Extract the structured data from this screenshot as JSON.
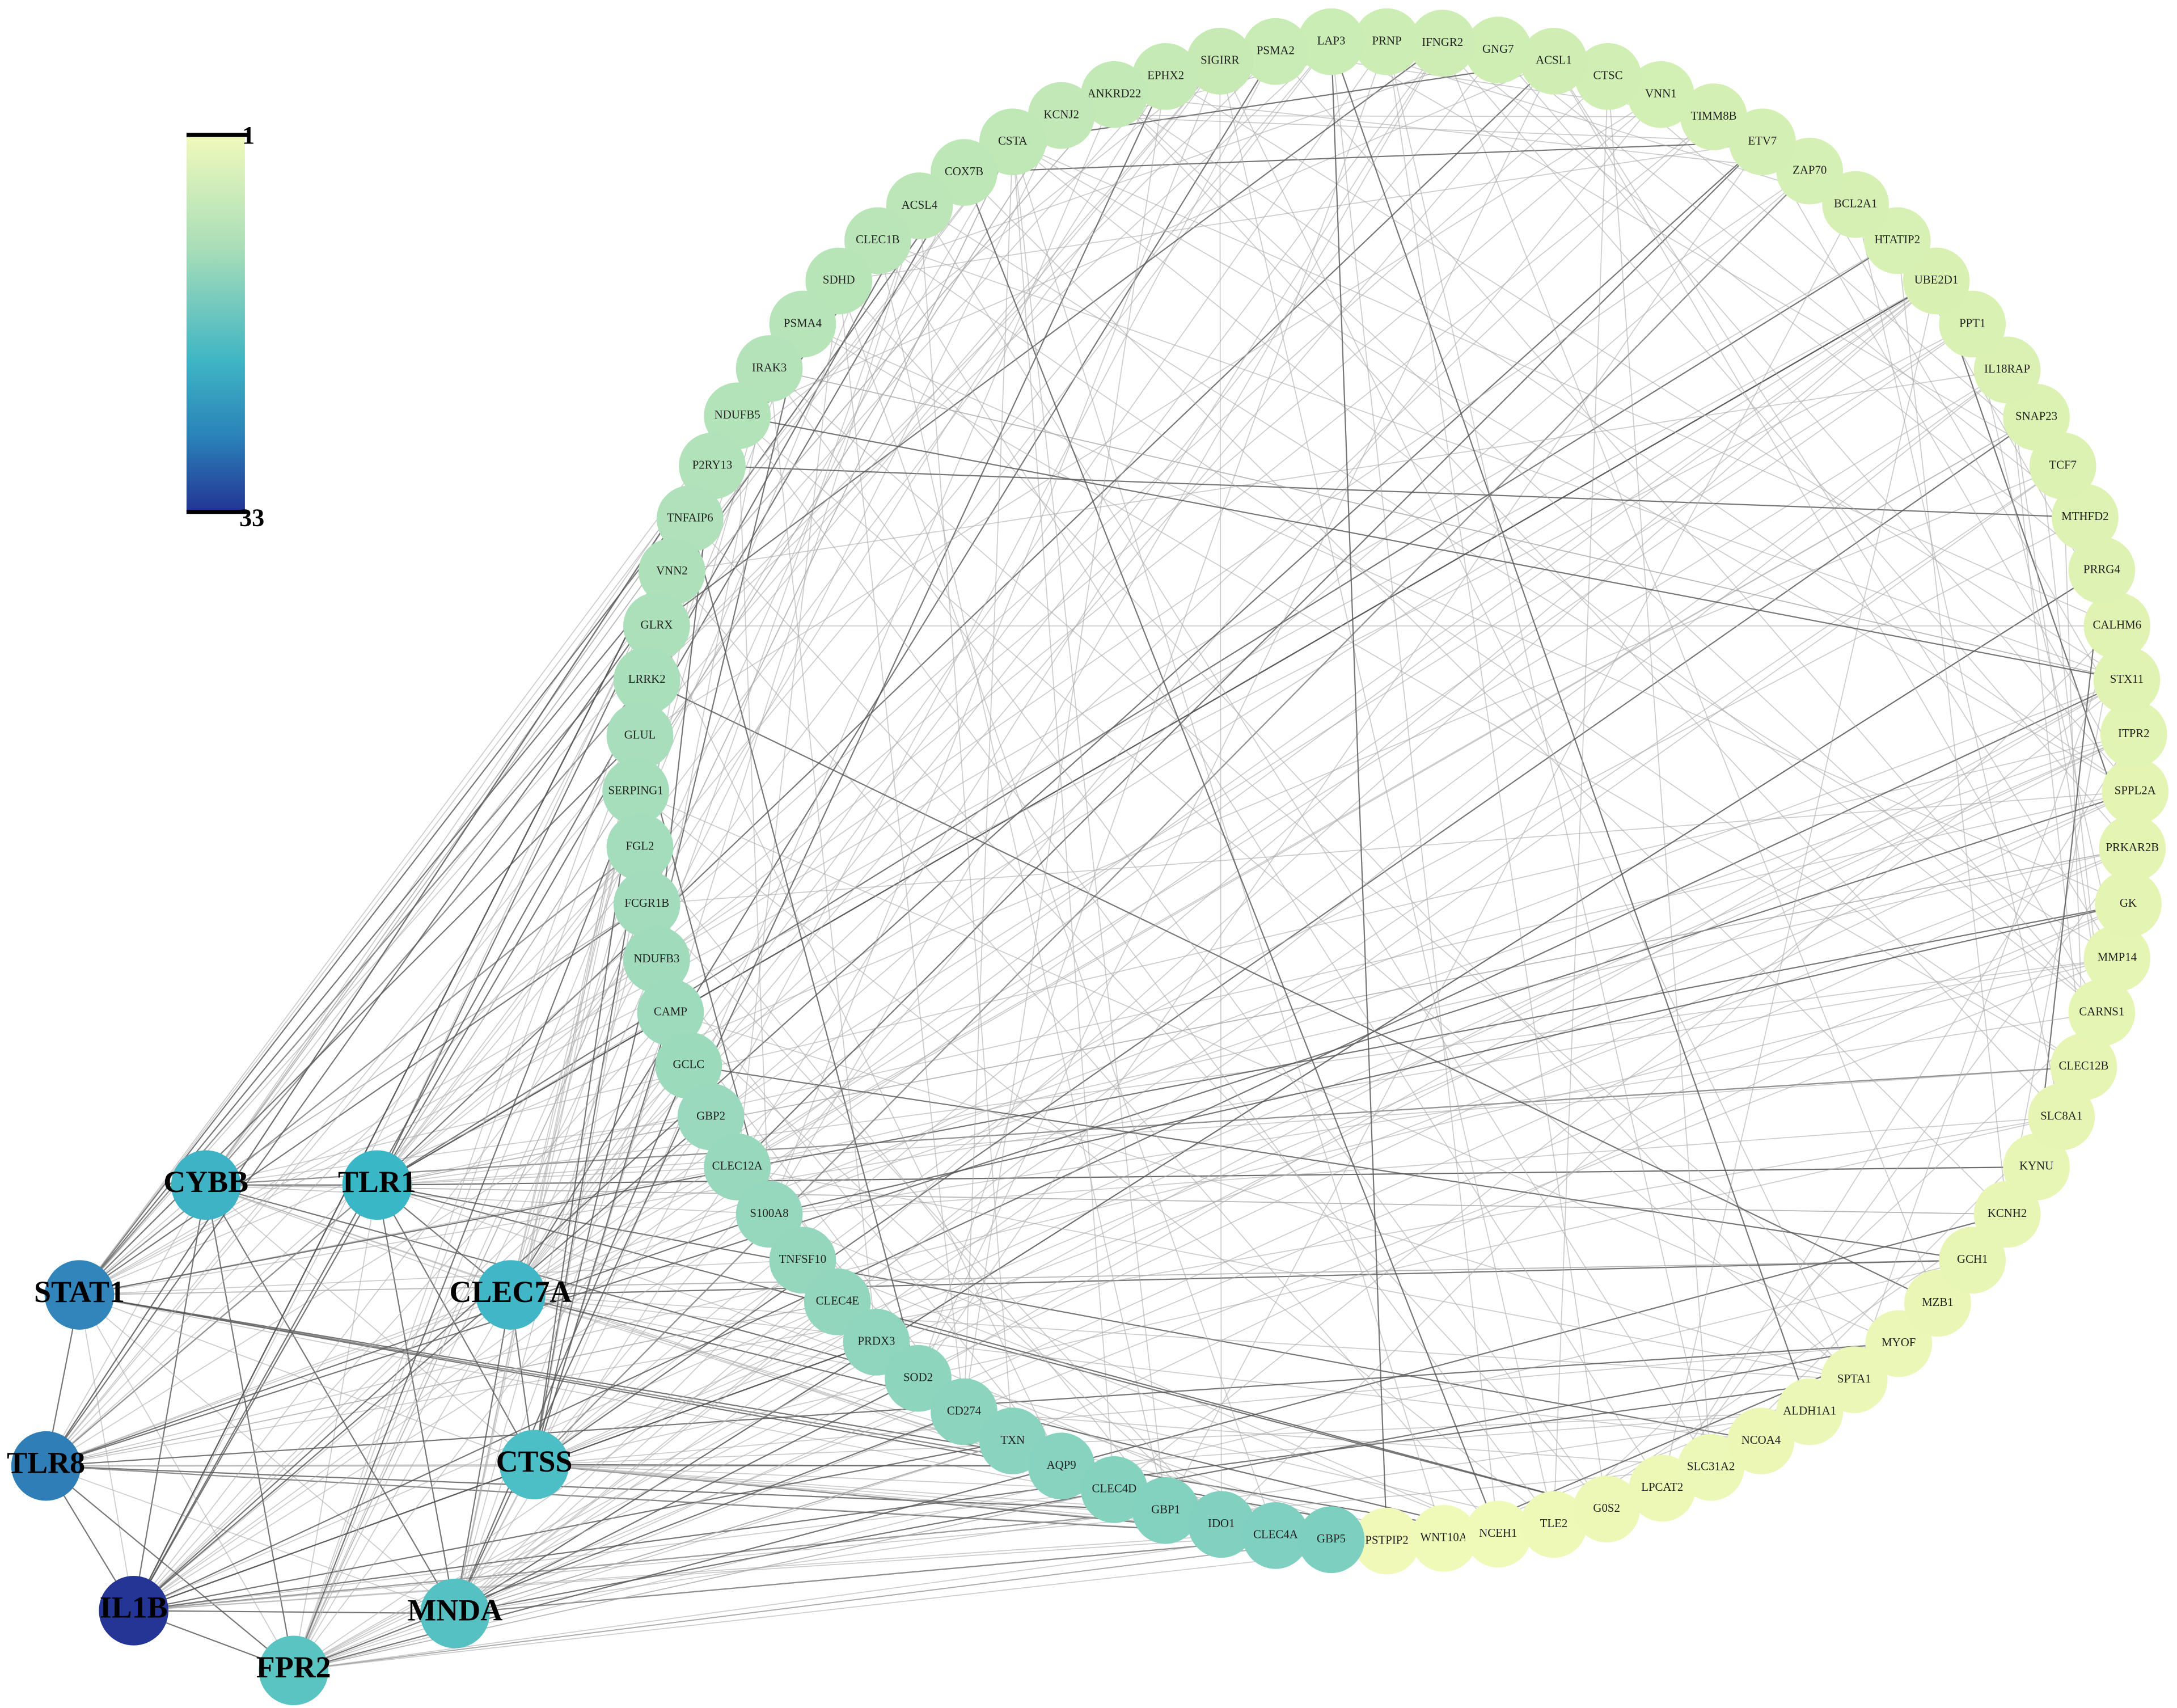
{
  "colorbar": {
    "min": 1,
    "max": 33
  },
  "ring_nodes": [
    "PSTPIP2",
    "WNT10A",
    "NCEH1",
    "TLE2",
    "G0S2",
    "LPCAT2",
    "SLC31A2",
    "NCOA4",
    "ALDH1A1",
    "SPTA1",
    "MYOF",
    "MZB1",
    "GCH1",
    "KCNH2",
    "KYNU",
    "SLC8A1",
    "CLEC12B",
    "CARNS1",
    "MMP14",
    "GK",
    "PRKAR2B",
    "SPPL2A",
    "ITPR2",
    "STX11",
    "CALHM6",
    "PRRG4",
    "MTHFD2",
    "TCF7",
    "SNAP23",
    "IL18RAP",
    "PPT1",
    "UBE2D1",
    "HTATIP2",
    "BCL2A1",
    "ZAP70",
    "ETV7",
    "TIMM8B",
    "VNN1",
    "CTSC",
    "ACSL1",
    "GNG7",
    "IFNGR2",
    "PRNP",
    "LAP3",
    "PSMA2",
    "SIGIRR",
    "EPHX2",
    "ANKRD22",
    "KCNJ2",
    "CSTA",
    "COX7B",
    "ACSL4",
    "CLEC1B",
    "SDHD",
    "PSMA4",
    "IRAK3",
    "NDUFB5",
    "P2RY13",
    "TNFAIP6",
    "VNN2",
    "GLRX",
    "LRRK2",
    "GLUL",
    "SERPING1",
    "FGL2",
    "FCGR1B",
    "NDUFB3",
    "CAMP",
    "GCLC",
    "GBP2",
    "CLEC12A",
    "S100A8",
    "TNFSF10",
    "CLEC4E",
    "PRDX3",
    "SOD2",
    "CD274",
    "TXN",
    "AQP9",
    "CLEC4D",
    "GBP1",
    "IDO1",
    "CLEC4A",
    "GBP5"
  ],
  "hub_nodes": [
    "CYBB",
    "TLR1",
    "STAT1",
    "CLEC7A",
    "TLR8",
    "CTSS",
    "IL1B",
    "MNDA",
    "FPR2"
  ]
}
